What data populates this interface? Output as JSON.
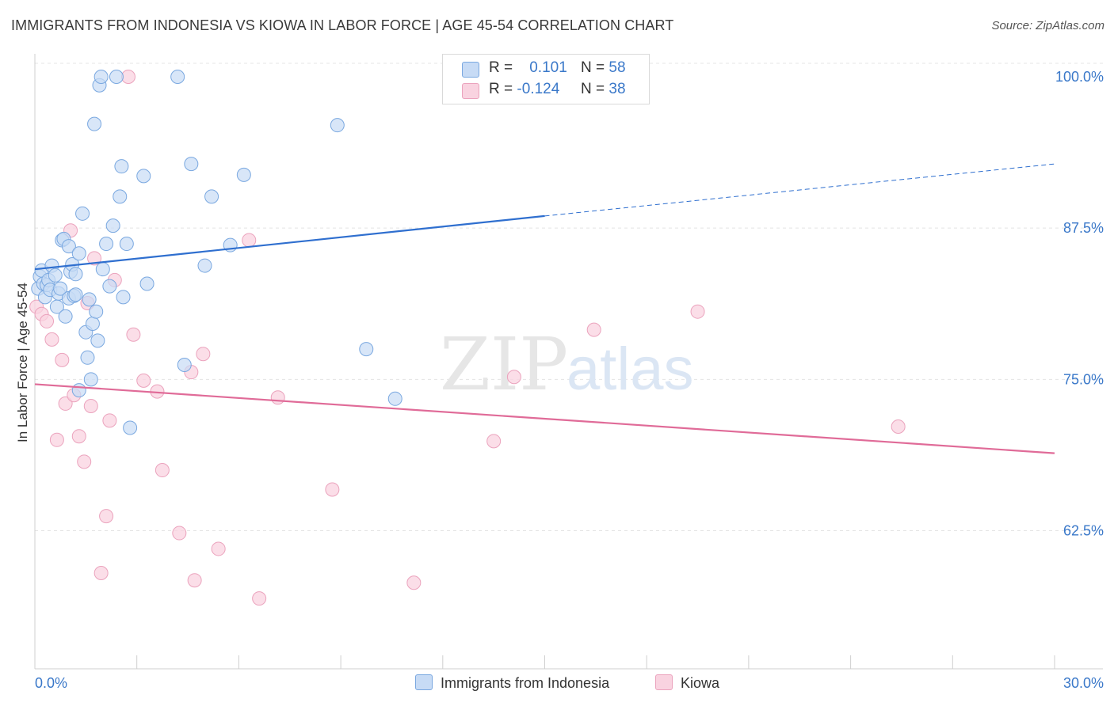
{
  "header": {
    "title": "IMMIGRANTS FROM INDONESIA VS KIOWA IN LABOR FORCE | AGE 45-54 CORRELATION CHART",
    "source": "Source: ZipAtlas.com"
  },
  "legend": {
    "series1": {
      "r_label": "R =",
      "r_value": "0.101",
      "n_label": "N =",
      "n_value": "58"
    },
    "series2": {
      "r_label": "R =",
      "r_value": "-0.124",
      "n_label": "N =",
      "n_value": "38"
    }
  },
  "bottom_legend": {
    "series1": "Immigrants from Indonesia",
    "series2": "Kiowa"
  },
  "watermark": {
    "zip": "ZIP",
    "atlas": "atlas"
  },
  "colors": {
    "blue_fill": "#c7dbf5",
    "blue_stroke": "#7aa8e0",
    "blue_line": "#2f6fcf",
    "pink_fill": "#f9d3e0",
    "pink_stroke": "#eba3bd",
    "pink_line": "#e06b98",
    "tick_text": "#3a78c9"
  },
  "chart_data": {
    "type": "scatter",
    "title": "IMMIGRANTS FROM INDONESIA VS KIOWA IN LABOR FORCE | AGE 45-54 CORRELATION CHART",
    "xlabel": "",
    "ylabel": "In Labor Force | Age 45-54",
    "xlim": [
      0,
      30
    ],
    "ylim": [
      50,
      101
    ],
    "x_tick_labels": [
      "0.0%",
      "30.0%"
    ],
    "y_ticks": [
      62.5,
      75.0,
      87.5,
      100.0
    ],
    "y_tick_labels": [
      "62.5%",
      "75.0%",
      "87.5%",
      "100.0%"
    ],
    "grid": true,
    "legend_position": "top-center",
    "series": [
      {
        "name": "Immigrants from Indonesia",
        "R": 0.101,
        "N": 58,
        "trend": {
          "x": [
            0,
            15
          ],
          "y": [
            84.1,
            88.5
          ],
          "dashed_extension": {
            "x": [
              15,
              30
            ],
            "y": [
              88.5,
              92.8
            ]
          }
        },
        "points": [
          [
            0.1,
            82.5
          ],
          [
            0.15,
            83.5
          ],
          [
            0.2,
            84.0
          ],
          [
            0.25,
            82.9
          ],
          [
            0.3,
            81.8
          ],
          [
            0.35,
            82.8
          ],
          [
            0.4,
            83.2
          ],
          [
            0.45,
            82.4
          ],
          [
            0.5,
            84.4
          ],
          [
            0.6,
            83.6
          ],
          [
            0.65,
            81.0
          ],
          [
            0.7,
            82.1
          ],
          [
            0.75,
            82.5
          ],
          [
            0.8,
            86.5
          ],
          [
            0.85,
            86.6
          ],
          [
            0.9,
            80.2
          ],
          [
            1.0,
            81.7
          ],
          [
            1.0,
            86.0
          ],
          [
            1.05,
            83.9
          ],
          [
            1.1,
            84.5
          ],
          [
            1.15,
            81.9
          ],
          [
            1.2,
            82.0
          ],
          [
            1.2,
            83.7
          ],
          [
            1.3,
            85.4
          ],
          [
            1.3,
            74.1
          ],
          [
            1.4,
            88.7
          ],
          [
            1.5,
            78.9
          ],
          [
            1.55,
            76.8
          ],
          [
            1.6,
            81.6
          ],
          [
            1.65,
            75.0
          ],
          [
            1.7,
            79.6
          ],
          [
            1.75,
            96.1
          ],
          [
            1.8,
            80.6
          ],
          [
            1.85,
            78.2
          ],
          [
            1.9,
            99.3
          ],
          [
            1.95,
            100.0
          ],
          [
            2.0,
            84.1
          ],
          [
            2.1,
            86.2
          ],
          [
            2.2,
            82.7
          ],
          [
            2.3,
            87.7
          ],
          [
            2.4,
            100.0
          ],
          [
            2.5,
            90.1
          ],
          [
            2.55,
            92.6
          ],
          [
            2.6,
            81.8
          ],
          [
            2.7,
            86.2
          ],
          [
            2.8,
            71.0
          ],
          [
            3.2,
            91.8
          ],
          [
            3.3,
            82.9
          ],
          [
            4.2,
            100.0
          ],
          [
            4.4,
            76.2
          ],
          [
            4.6,
            92.8
          ],
          [
            5.2,
            90.1
          ],
          [
            5.0,
            84.4
          ],
          [
            5.75,
            86.1
          ],
          [
            6.15,
            91.9
          ],
          [
            8.9,
            96.0
          ],
          [
            9.75,
            77.5
          ],
          [
            10.6,
            73.4
          ]
        ]
      },
      {
        "name": "Kiowa",
        "R": -0.124,
        "N": 38,
        "trend": {
          "x": [
            0,
            30
          ],
          "y": [
            74.6,
            68.9
          ]
        },
        "points": [
          [
            0.05,
            81.0
          ],
          [
            0.2,
            80.4
          ],
          [
            0.35,
            79.8
          ],
          [
            0.5,
            78.3
          ],
          [
            0.65,
            70.0
          ],
          [
            0.8,
            76.6
          ],
          [
            0.9,
            73.0
          ],
          [
            1.05,
            87.3
          ],
          [
            1.15,
            73.7
          ],
          [
            1.3,
            70.3
          ],
          [
            1.45,
            68.2
          ],
          [
            1.55,
            81.3
          ],
          [
            1.65,
            72.8
          ],
          [
            1.75,
            85.0
          ],
          [
            1.95,
            59.0
          ],
          [
            2.1,
            63.7
          ],
          [
            2.2,
            71.6
          ],
          [
            2.35,
            83.2
          ],
          [
            2.9,
            78.7
          ],
          [
            3.2,
            74.9
          ],
          [
            3.6,
            74.0
          ],
          [
            3.75,
            67.5
          ],
          [
            4.25,
            62.3
          ],
          [
            4.6,
            75.6
          ],
          [
            4.7,
            58.4
          ],
          [
            4.95,
            77.1
          ],
          [
            5.4,
            61.0
          ],
          [
            6.3,
            86.5
          ],
          [
            6.6,
            56.9
          ],
          [
            7.15,
            73.5
          ],
          [
            8.75,
            65.9
          ],
          [
            11.15,
            58.2
          ],
          [
            13.5,
            69.9
          ],
          [
            14.1,
            75.2
          ],
          [
            16.45,
            79.1
          ],
          [
            19.5,
            80.6
          ],
          [
            25.4,
            71.1
          ],
          [
            2.75,
            100.0
          ]
        ]
      }
    ]
  }
}
